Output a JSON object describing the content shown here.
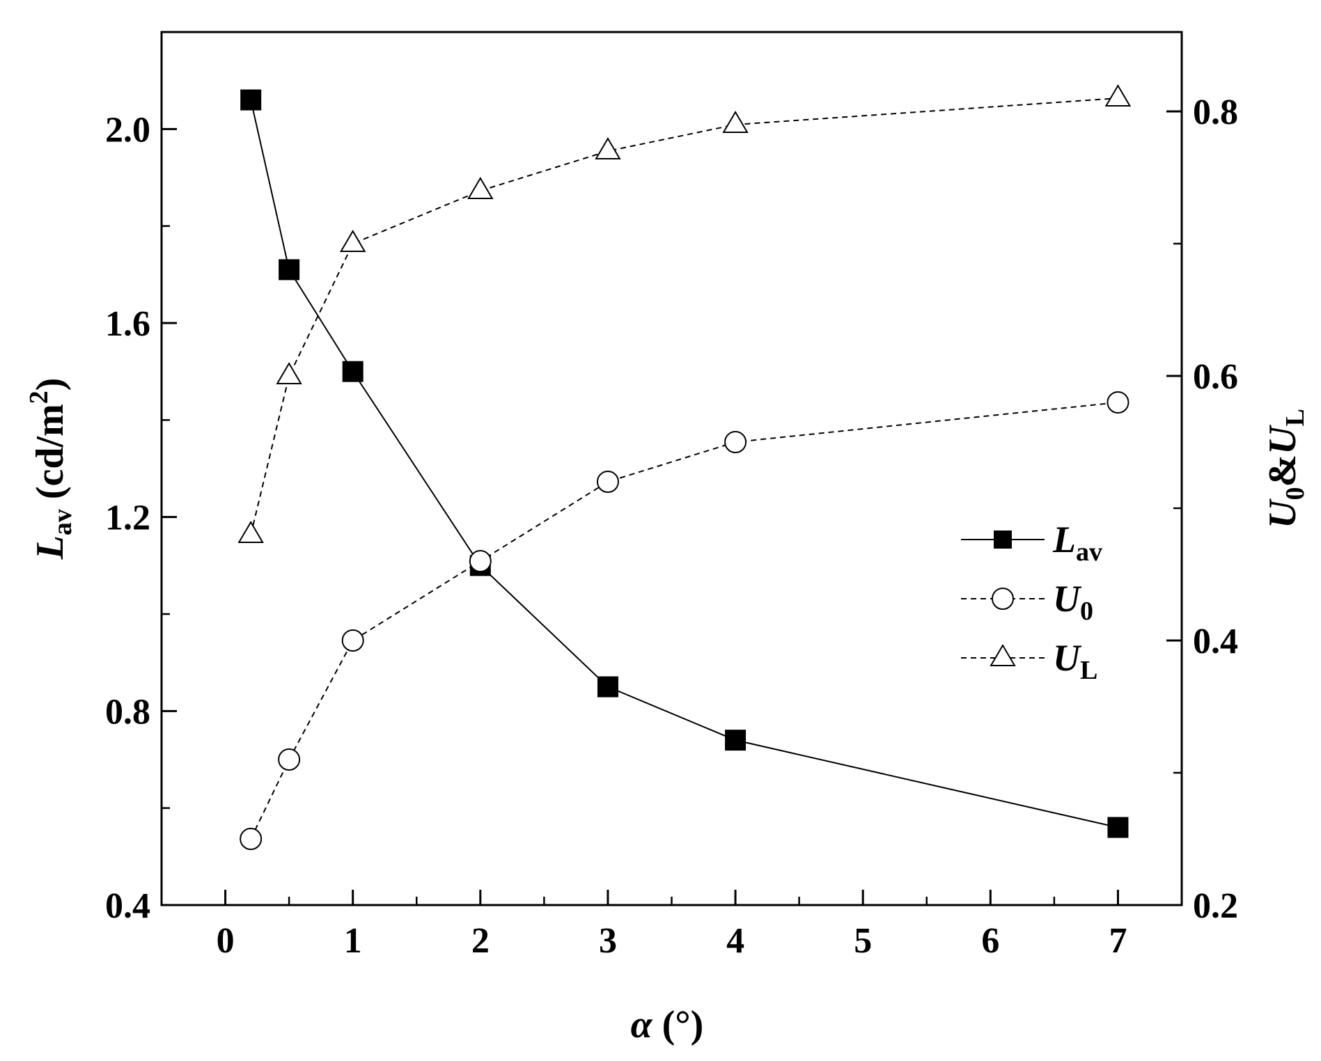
{
  "chart_data": {
    "type": "line",
    "x_axis": {
      "title_symbol": "α",
      "title_unit": "(°)",
      "ticks": [
        0,
        1,
        2,
        3,
        4,
        5,
        6,
        7
      ],
      "tick_labels": [
        "0",
        "1",
        "2",
        "3",
        "4",
        "5",
        "6",
        "7"
      ],
      "range": [
        -0.5,
        7.5
      ]
    },
    "y_left": {
      "title_main": "L",
      "title_sub": "av",
      "title_unit_pre": "(cd/m",
      "title_unit_sup": "2",
      "title_unit_post": ")",
      "ticks": [
        0.4,
        0.8,
        1.2,
        1.6,
        2.0
      ],
      "tick_labels": [
        "0.4",
        "0.8",
        "1.2",
        "1.6",
        "2.0"
      ],
      "range": [
        0.4,
        2.2
      ]
    },
    "y_right": {
      "title_u": "U",
      "title_sub0": "0",
      "title_amp": "&",
      "title_sub1": "L",
      "ticks": [
        0.2,
        0.4,
        0.6,
        0.8
      ],
      "tick_labels": [
        "0.2",
        "0.4",
        "0.6",
        "0.8"
      ],
      "range": [
        0.2,
        0.86
      ]
    },
    "series": [
      {
        "name": "L",
        "name_sub": "av",
        "axis": "left",
        "marker": "square-filled",
        "line": "solid",
        "x": [
          0.2,
          0.5,
          1,
          2,
          3,
          4,
          7
        ],
        "y": [
          2.06,
          1.71,
          1.5,
          1.1,
          0.85,
          0.74,
          0.56
        ]
      },
      {
        "name": "U",
        "name_sub": "0",
        "axis": "right",
        "marker": "circle-open",
        "line": "dashed",
        "x": [
          0.2,
          0.5,
          1,
          2,
          3,
          4,
          7
        ],
        "y": [
          0.25,
          0.31,
          0.4,
          0.46,
          0.52,
          0.55,
          0.58
        ]
      },
      {
        "name": "U",
        "name_sub": "L",
        "axis": "right",
        "marker": "triangle-open",
        "line": "dashed",
        "x": [
          0.2,
          0.5,
          1,
          2,
          3,
          4,
          7
        ],
        "y": [
          0.48,
          0.6,
          0.7,
          0.74,
          0.77,
          0.79,
          0.81
        ]
      }
    ],
    "legend_position": "right-middle",
    "grid": false
  }
}
